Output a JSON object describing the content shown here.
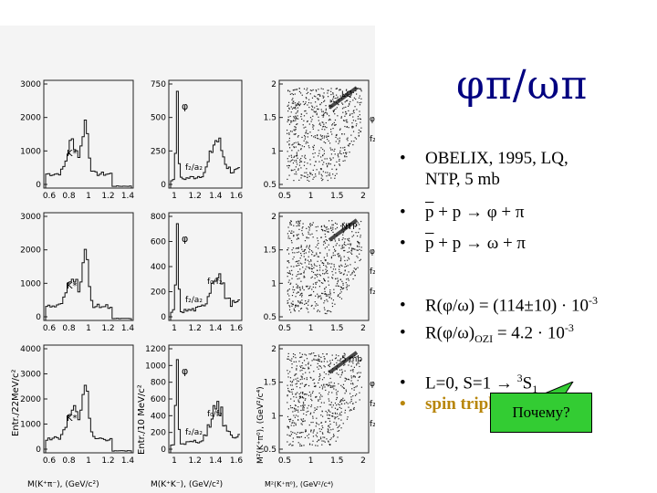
{
  "slide": {
    "title": "φπ/ωπ",
    "bullets": [
      {
        "text": "OBELIX, 1995, LQ,"
      },
      {
        "text": "NTP, 5 mb"
      },
      {
        "pbar": "p",
        "rest": " + p → φ + π"
      },
      {
        "pbar": "p",
        "rest": " + p → ω + π"
      },
      {
        "pre": "R(φ/ω) = (114±10) · 10",
        "sup": "-3"
      },
      {
        "pre": "R(φ/ω)",
        "sub": "OZI",
        "post": "  = 4.2 · 10",
        "sup": "-3"
      },
      {
        "pre": "L=0, S=1    → ",
        "sup": "3",
        "post": "S",
        "sub": "1"
      },
      {
        "text": "spin triplet"
      }
    ],
    "callout": "Почему?",
    "accent_color": "#000080",
    "highlight_color": "#b8860b",
    "callout_color": "#33cc33"
  },
  "figure": {
    "ylabel_left": "Entr./22MeV/c²",
    "ylabel_mid": "Entr./10 MeV/c²",
    "ylabel_right": "M²(K⁺π⁰), (GeV²/c⁴)",
    "xlabel_left": "M(K⁺π⁻), (GeV/c²)",
    "xlabel_mid": "M(K⁺K⁻), (GeV/c²)",
    "xlabel_right": "M²(K⁺π⁰), (GeV²/c⁴)",
    "rows": [
      {
        "left_ticks": [
          "3000",
          "2000",
          "1000",
          "0"
        ],
        "left_peak": "K*",
        "left_xticks": [
          "0.6",
          "0.8",
          "1",
          "1.2",
          "1.4"
        ],
        "mid_ticks": [
          "750",
          "500",
          "250",
          "0"
        ],
        "mid_peak": "φ",
        "mid_annot": "f₂/a₂",
        "mid_xticks": [
          "1",
          "1.2",
          "1.4",
          "1.6"
        ],
        "right_ticks": [
          "2",
          "1.5",
          "1",
          "0.5"
        ],
        "right_xticks": [
          "0.5",
          "1",
          "1.5",
          "2"
        ],
        "right_label": "LQ",
        "right_marks": [
          "φ",
          "f₂"
        ]
      },
      {
        "left_ticks": [
          "3000",
          "2000",
          "1000",
          "0"
        ],
        "left_peak": "K*",
        "left_xticks": [
          "0.6",
          "0.8",
          "1",
          "1.2",
          "1.4"
        ],
        "mid_ticks": [
          "800",
          "600",
          "400",
          "200",
          "0"
        ],
        "mid_peak": "φ",
        "mid_annot": "f₀/f₂",
        "mid_annot2": "f₂/a₂",
        "mid_xticks": [
          "1",
          "1.2",
          "1.4",
          "1.6"
        ],
        "right_ticks": [
          "2",
          "1.5",
          "1",
          "0.5"
        ],
        "right_xticks": [
          "0.5",
          "1",
          "1.5",
          "2"
        ],
        "right_label": "NTP",
        "right_marks": [
          "φ",
          "f₂",
          "f₂"
        ]
      },
      {
        "left_ticks": [
          "4000",
          "3000",
          "2000",
          "1000",
          "0"
        ],
        "left_peak": "K*",
        "left_xticks": [
          "0.6",
          "0.8",
          "1",
          "1.2",
          "1.4"
        ],
        "mid_ticks": [
          "1200",
          "1000",
          "800",
          "600",
          "400",
          "200",
          "0"
        ],
        "mid_peak": "φ",
        "mid_annot": "f₀/f₂",
        "mid_annot2": "f₂/a₂",
        "mid_xticks": [
          "1",
          "1.2",
          "1.4",
          "1.6"
        ],
        "right_ticks": [
          "2",
          "1.5",
          "1",
          "0.5"
        ],
        "right_xticks": [
          "0.5",
          "1",
          "1.5",
          "2"
        ],
        "right_label": "5 mb",
        "right_marks": [
          "φ",
          "f₂",
          "f₂"
        ]
      }
    ]
  }
}
